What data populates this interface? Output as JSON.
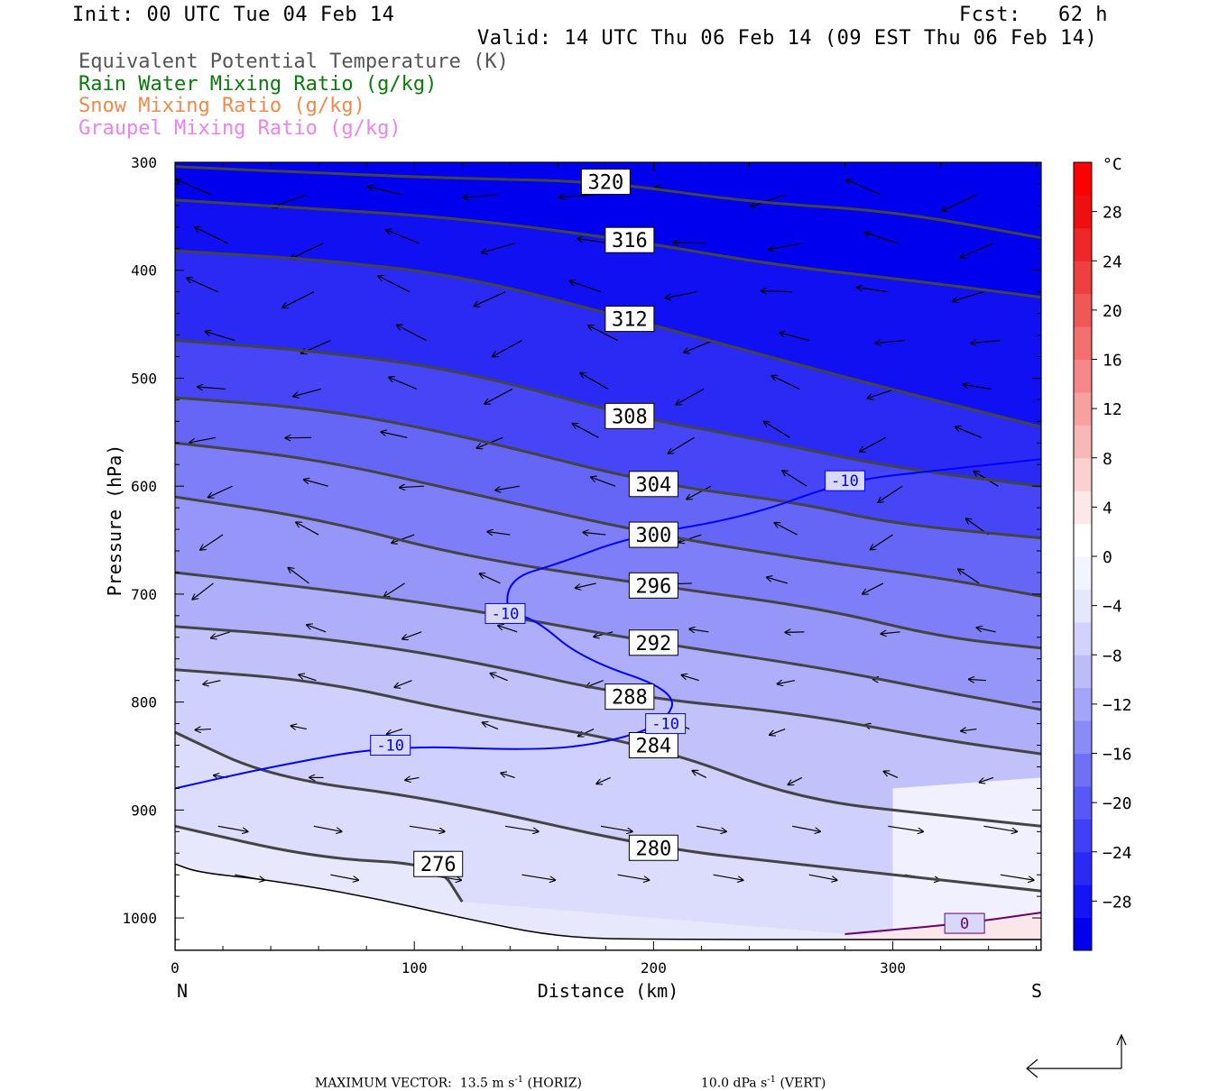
{
  "header": {
    "init": "Init: 00 UTC Tue 04 Feb 14",
    "fcst": "Fcst:   62 h",
    "valid": "Valid: 14 UTC Thu 06 Feb 14 (09 EST Thu 06 Feb 14)"
  },
  "fields": [
    {
      "label": "Equivalent Potential Temperature (K)",
      "color": "#555555"
    },
    {
      "label": "Rain Water Mixing Ratio (g/kg)",
      "color": "#0a7a0a"
    },
    {
      "label": "Snow Mixing Ratio (g/kg)",
      "color": "#f08a4b"
    },
    {
      "label": "Graupel Mixing Ratio (g/kg)",
      "color": "#ee82ee"
    }
  ],
  "footer": {
    "label": "MAXIMUM VECTOR:",
    "horiz": "13.5 m s",
    "horiz_unit": " (HORIZ)",
    "vert": "10.0 dPa s",
    "vert_unit": " (VERT)",
    "exp": "-1"
  },
  "chart_data": {
    "type": "contour",
    "xlabel": "Distance (km)",
    "ylabel": "Pressure (hPa)",
    "xlim": [
      0,
      362
    ],
    "ylim": [
      300,
      1030
    ],
    "x_ticks": [
      0,
      100,
      200,
      300
    ],
    "y_ticks": [
      300,
      400,
      500,
      600,
      700,
      800,
      900,
      1000
    ],
    "left_end_label": "N",
    "right_end_label": "S",
    "colorbar": {
      "unit": "°C",
      "ticks": [
        28,
        24,
        20,
        16,
        12,
        8,
        4,
        0,
        -4,
        -8,
        -12,
        -16,
        -20,
        -24,
        -28
      ],
      "colors": [
        "#0000ee",
        "#1414f4",
        "#2a2af4",
        "#4040f6",
        "#5858f6",
        "#7070f6",
        "#8a8af8",
        "#a4a4fa",
        "#bcbcfa",
        "#d2d2fc",
        "#e6e6fc",
        "#f4f4fe",
        "#ffffff",
        "#fce8e8",
        "#fad0d0",
        "#f8b8b8",
        "#f6a0a0",
        "#f48888",
        "#f27070",
        "#f05858",
        "#ee4040",
        "#ee2828",
        "#ee1010",
        "#ff0000"
      ]
    },
    "theta_e_contours": [
      {
        "label": "320",
        "points": [
          [
            0,
            304
          ],
          [
            60,
            310
          ],
          [
            120,
            315
          ],
          [
            180,
            318
          ],
          [
            240,
            337
          ],
          [
            300,
            345
          ],
          [
            362,
            370
          ]
        ]
      },
      {
        "label": "316",
        "points": [
          [
            0,
            335
          ],
          [
            60,
            343
          ],
          [
            120,
            352
          ],
          [
            190,
            372
          ],
          [
            250,
            395
          ],
          [
            310,
            410
          ],
          [
            362,
            425
          ]
        ]
      },
      {
        "label": "312",
        "points": [
          [
            0,
            382
          ],
          [
            60,
            390
          ],
          [
            120,
            405
          ],
          [
            190,
            445
          ],
          [
            240,
            475
          ],
          [
            290,
            505
          ],
          [
            362,
            545
          ]
        ]
      },
      {
        "label": "308",
        "points": [
          [
            0,
            465
          ],
          [
            60,
            475
          ],
          [
            120,
            493
          ],
          [
            190,
            535
          ],
          [
            240,
            555
          ],
          [
            300,
            583
          ],
          [
            362,
            600
          ]
        ]
      },
      {
        "label": "304",
        "points": [
          [
            0,
            518
          ],
          [
            60,
            528
          ],
          [
            120,
            553
          ],
          [
            200,
            598
          ],
          [
            260,
            615
          ],
          [
            300,
            635
          ],
          [
            362,
            648
          ]
        ]
      },
      {
        "label": "300",
        "points": [
          [
            0,
            560
          ],
          [
            60,
            575
          ],
          [
            120,
            605
          ],
          [
            200,
            645
          ],
          [
            270,
            670
          ],
          [
            320,
            685
          ],
          [
            362,
            702
          ]
        ]
      },
      {
        "label": "296",
        "points": [
          [
            0,
            610
          ],
          [
            60,
            630
          ],
          [
            120,
            665
          ],
          [
            200,
            692
          ],
          [
            270,
            713
          ],
          [
            320,
            740
          ],
          [
            362,
            750
          ]
        ]
      },
      {
        "label": "292",
        "points": [
          [
            0,
            680
          ],
          [
            60,
            695
          ],
          [
            120,
            713
          ],
          [
            200,
            745
          ],
          [
            270,
            768
          ],
          [
            320,
            790
          ],
          [
            362,
            807
          ]
        ]
      },
      {
        "label": "288",
        "points": [
          [
            0,
            730
          ],
          [
            60,
            740
          ],
          [
            120,
            760
          ],
          [
            190,
            795
          ],
          [
            260,
            810
          ],
          [
            320,
            835
          ],
          [
            362,
            848
          ]
        ]
      },
      {
        "label": "284",
        "points": [
          [
            0,
            770
          ],
          [
            60,
            780
          ],
          [
            120,
            810
          ],
          [
            200,
            840
          ],
          [
            260,
            890
          ],
          [
            320,
            905
          ],
          [
            362,
            915
          ]
        ]
      },
      {
        "label": "280",
        "points": [
          [
            0,
            828
          ],
          [
            40,
            870
          ],
          [
            110,
            890
          ],
          [
            200,
            935
          ],
          [
            260,
            950
          ],
          [
            300,
            960
          ],
          [
            362,
            975
          ]
        ]
      },
      {
        "label": "276",
        "points": [
          [
            0,
            915
          ],
          [
            60,
            945
          ],
          [
            110,
            950
          ],
          [
            120,
            985
          ]
        ]
      }
    ],
    "temperature_contours": [
      {
        "label": "-10",
        "color": "#0000ff",
        "points": [
          [
            0,
            880
          ],
          [
            40,
            860
          ],
          [
            90,
            840
          ],
          [
            150,
            845
          ],
          [
            180,
            838
          ],
          [
            205,
            820
          ],
          [
            210,
            790
          ],
          [
            170,
            760
          ],
          [
            150,
            722
          ],
          [
            138,
            718
          ],
          [
            140,
            685
          ],
          [
            160,
            672
          ],
          [
            190,
            647
          ],
          [
            240,
            628
          ],
          [
            280,
            595
          ],
          [
            320,
            585
          ],
          [
            362,
            575
          ]
        ]
      },
      {
        "label": "0",
        "color": "#6a006a",
        "points": [
          [
            280,
            1015
          ],
          [
            330,
            1005
          ],
          [
            362,
            995
          ]
        ]
      }
    ]
  }
}
